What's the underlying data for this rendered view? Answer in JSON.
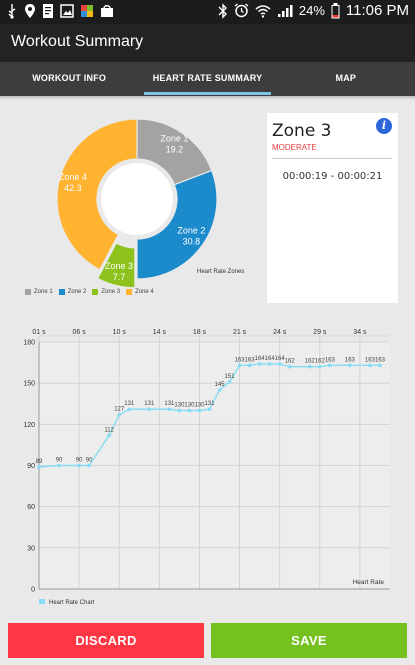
{
  "status_bar": {
    "battery": "24%",
    "time": "11:06 PM"
  },
  "app": {
    "title": "Workout Summary"
  },
  "tabs": [
    {
      "label": "WORKOUT INFO",
      "active": false
    },
    {
      "label": "HEART RATE SUMMARY",
      "active": true
    },
    {
      "label": "MAP",
      "active": false
    }
  ],
  "zone_card": {
    "zone": "Zone 3",
    "intensity": "MODERATE",
    "time_range": "00:00:19 - 00:00:21",
    "info_icon": "i"
  },
  "colors": {
    "zone1": "#a3a3a3",
    "zone2": "#1c8bcc",
    "zone3": "#8dc21d",
    "zone4": "#ffb330",
    "line": "#86dcf5",
    "discard": "#ff3644",
    "save": "#74c11f"
  },
  "chart_data": [
    {
      "type": "pie",
      "title": "Heart Rate Zones",
      "labels": [
        "Zone 1",
        "Zone 2",
        "Zone 3",
        "Zone 4"
      ],
      "values": [
        19.2,
        30.8,
        7.7,
        42.3
      ],
      "legend": [
        "Zone 1",
        "Zone 2",
        "Zone 3",
        "Zone 4"
      ],
      "highlighted": "Zone 3"
    },
    {
      "type": "line",
      "title": "Heart Rate Chart",
      "legend": "Heart Rate Chart",
      "series_name": "Heart Rate",
      "x_tick_labels": [
        "01 s",
        "06 s",
        "10 s",
        "14 s",
        "18 s",
        "21 s",
        "24 s",
        "29 s",
        "34 s"
      ],
      "x": [
        1,
        3,
        5,
        6,
        8,
        9,
        10,
        12,
        14,
        15,
        16,
        17,
        18,
        19,
        20,
        21,
        22,
        23,
        24,
        25,
        26,
        28,
        29,
        30,
        32,
        34,
        35
      ],
      "y": [
        89,
        90,
        90,
        90,
        112,
        127,
        131,
        131,
        131,
        130,
        130,
        130,
        131,
        145,
        151,
        163,
        163,
        164,
        164,
        164,
        162,
        162,
        162,
        163,
        163,
        163,
        163
      ],
      "point_labels": [
        "89",
        "90",
        "90",
        "90",
        "112",
        "127",
        "131",
        "131",
        "131",
        "130",
        "130",
        "130",
        "131",
        "145",
        "151",
        "163",
        "163",
        "164",
        "164",
        "164",
        "162",
        "162",
        "162",
        "163",
        "163",
        "163",
        "163"
      ],
      "xlim": [
        1,
        36
      ],
      "ylim": [
        0,
        180
      ],
      "yticks": [
        0,
        30,
        60,
        90,
        120,
        150,
        180
      ]
    }
  ],
  "buttons": {
    "discard": "DISCARD",
    "save": "SAVE"
  }
}
